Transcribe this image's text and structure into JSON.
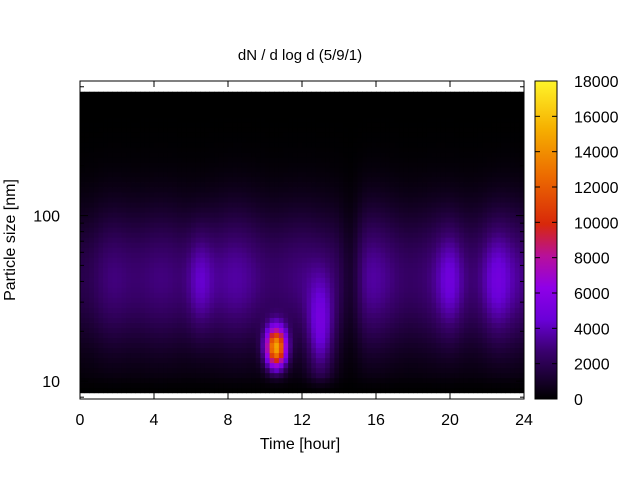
{
  "chart_data": {
    "type": "heatmap",
    "title": "dN / d log d (5/9/1)",
    "xlabel": "Time [hour]",
    "ylabel": "Particle size [nm]",
    "xlim": [
      0,
      24
    ],
    "ylim": [
      7.8,
      650
    ],
    "yscale": "log",
    "xticks": [
      0,
      4,
      8,
      12,
      16,
      20,
      24
    ],
    "yticks": [
      10,
      100
    ],
    "colorbar": {
      "range": [
        0,
        18000
      ],
      "ticks": [
        0,
        2000,
        4000,
        6000,
        8000,
        10000,
        12000,
        14000,
        16000,
        18000
      ],
      "palette": "gnuplot black-purple-red-orange-yellow"
    },
    "data_range_nm": [
      8.5,
      560
    ],
    "hotspots": [
      {
        "time_hour": 10.6,
        "size_nm": 16,
        "value": 16500
      },
      {
        "time_hour": 13.0,
        "size_nm": 20,
        "value": 6000
      },
      {
        "time_hour": 6.5,
        "size_nm": 40,
        "value": 4500
      },
      {
        "time_hour": 20.0,
        "size_nm": 40,
        "value": 4500
      },
      {
        "time_hour": 22.5,
        "size_nm": 40,
        "value": 4000
      }
    ],
    "grid": false,
    "legend": "colorbar-right"
  }
}
